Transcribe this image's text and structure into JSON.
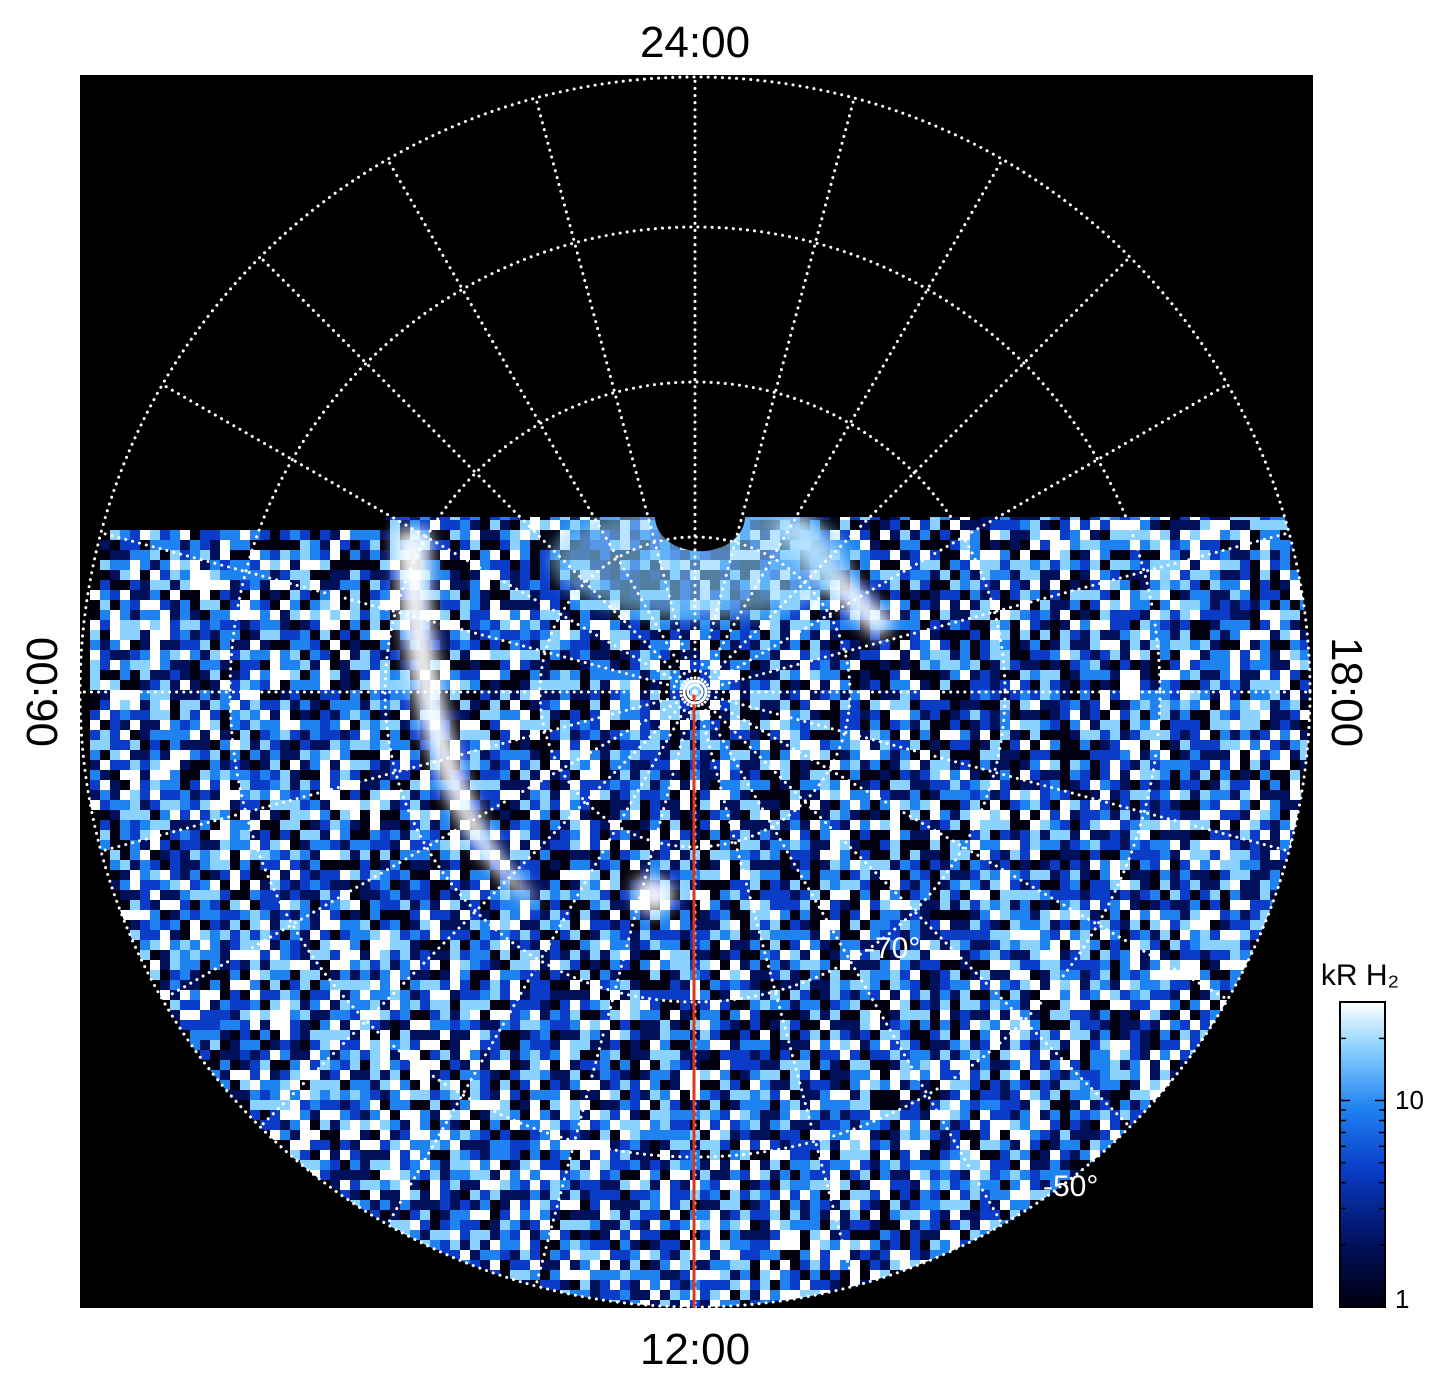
{
  "figure": {
    "local_time_labels": {
      "top": "24:00",
      "bottom": "12:00",
      "left": "06:00",
      "right": "18:00"
    },
    "latitude_labels": [
      "-70°",
      "-50°"
    ],
    "colorbar": {
      "title": "kR H₂",
      "ticks": [
        "10",
        "1"
      ],
      "scale": "log",
      "range_kR": [
        1,
        30
      ]
    },
    "colors": {
      "background": "#000000",
      "grid": "#ffffff",
      "track_line": "#d9381e",
      "colormap": [
        "#000010",
        "#00105a",
        "#0a3cc8",
        "#1e82f0",
        "#8cd2ff",
        "#ffffff"
      ]
    },
    "grid": {
      "lines_dotted": true,
      "latitude_circles_deg": [
        -80,
        -70,
        -60,
        -50
      ],
      "local_time_meridians_hours": 24
    }
  }
}
